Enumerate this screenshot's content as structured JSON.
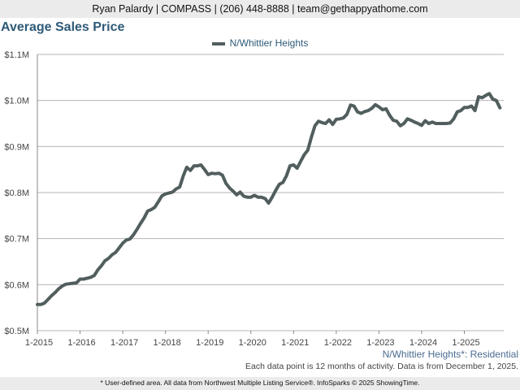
{
  "header": {
    "contact": "Ryan Palardy | COMPASS | (206) 448-8888 | team@gethappyathome.com"
  },
  "chart_data": {
    "type": "line",
    "title": "Average Sales Price",
    "area_label": "N/Whittier Heights*: Residential",
    "note": "Each data point is 12 months of activity. Data is from December 1, 2025.",
    "footer": "* User-defined area. All data from Northwest Multiple Listing Service®. InfoSparks © 2025 ShowingTime.",
    "legend_position": "top",
    "grid": true,
    "line_color": "#525e5e",
    "ylim": [
      0.5,
      1.1
    ],
    "y_ticks": [
      {
        "value": 0.5,
        "label": "$0.5M"
      },
      {
        "value": 0.6,
        "label": "$0.6M"
      },
      {
        "value": 0.7,
        "label": "$0.7M"
      },
      {
        "value": 0.8,
        "label": "$0.8M"
      },
      {
        "value": 0.9,
        "label": "$0.9M"
      },
      {
        "value": 1.0,
        "label": "$1.0M"
      },
      {
        "value": 1.1,
        "label": "$1.1M"
      }
    ],
    "x_ticks": [
      "1-2015",
      "1-2016",
      "1-2017",
      "1-2018",
      "1-2019",
      "1-2020",
      "1-2021",
      "1-2022",
      "1-2023",
      "1-2024",
      "1-2025"
    ],
    "series": [
      {
        "name": "N/Whittier Heights",
        "x": [
          "2015-01",
          "2015-02",
          "2015-03",
          "2015-04",
          "2015-05",
          "2015-06",
          "2015-07",
          "2015-08",
          "2015-09",
          "2015-10",
          "2015-11",
          "2015-12",
          "2016-01",
          "2016-02",
          "2016-03",
          "2016-04",
          "2016-05",
          "2016-06",
          "2016-07",
          "2016-08",
          "2016-09",
          "2016-10",
          "2016-11",
          "2016-12",
          "2017-01",
          "2017-02",
          "2017-03",
          "2017-04",
          "2017-05",
          "2017-06",
          "2017-07",
          "2017-08",
          "2017-09",
          "2017-10",
          "2017-11",
          "2017-12",
          "2018-01",
          "2018-02",
          "2018-03",
          "2018-04",
          "2018-05",
          "2018-06",
          "2018-07",
          "2018-08",
          "2018-09",
          "2018-10",
          "2018-11",
          "2018-12",
          "2019-01",
          "2019-02",
          "2019-03",
          "2019-04",
          "2019-05",
          "2019-06",
          "2019-07",
          "2019-08",
          "2019-09",
          "2019-10",
          "2019-11",
          "2019-12",
          "2020-01",
          "2020-02",
          "2020-03",
          "2020-04",
          "2020-05",
          "2020-06",
          "2020-07",
          "2020-08",
          "2020-09",
          "2020-10",
          "2020-11",
          "2020-12",
          "2021-01",
          "2021-02",
          "2021-03",
          "2021-04",
          "2021-05",
          "2021-06",
          "2021-07",
          "2021-08",
          "2021-09",
          "2021-10",
          "2021-11",
          "2021-12",
          "2022-01",
          "2022-02",
          "2022-03",
          "2022-04",
          "2022-05",
          "2022-06",
          "2022-07",
          "2022-08",
          "2022-09",
          "2022-10",
          "2022-11",
          "2022-12",
          "2023-01",
          "2023-02",
          "2023-03",
          "2023-04",
          "2023-05",
          "2023-06",
          "2023-07",
          "2023-08",
          "2023-09",
          "2023-10",
          "2023-11",
          "2023-12",
          "2024-01",
          "2024-02",
          "2024-03",
          "2024-04",
          "2024-05",
          "2024-06",
          "2024-07",
          "2024-08",
          "2024-09",
          "2024-10",
          "2024-11",
          "2024-12",
          "2025-01",
          "2025-02",
          "2025-03",
          "2025-04",
          "2025-05",
          "2025-06",
          "2025-07",
          "2025-08",
          "2025-09",
          "2025-10",
          "2025-11"
        ],
        "values": [
          0.557,
          0.557,
          0.56,
          0.568,
          0.576,
          0.583,
          0.591,
          0.597,
          0.601,
          0.602,
          0.603,
          0.604,
          0.612,
          0.612,
          0.614,
          0.616,
          0.62,
          0.632,
          0.641,
          0.652,
          0.657,
          0.665,
          0.67,
          0.68,
          0.69,
          0.697,
          0.699,
          0.708,
          0.72,
          0.733,
          0.745,
          0.76,
          0.763,
          0.768,
          0.78,
          0.793,
          0.797,
          0.799,
          0.801,
          0.808,
          0.812,
          0.836,
          0.855,
          0.848,
          0.858,
          0.858,
          0.86,
          0.85,
          0.839,
          0.842,
          0.841,
          0.842,
          0.838,
          0.82,
          0.81,
          0.803,
          0.795,
          0.801,
          0.792,
          0.79,
          0.79,
          0.794,
          0.79,
          0.79,
          0.787,
          0.777,
          0.79,
          0.805,
          0.818,
          0.822,
          0.836,
          0.858,
          0.86,
          0.853,
          0.868,
          0.882,
          0.892,
          0.92,
          0.945,
          0.955,
          0.952,
          0.95,
          0.958,
          0.948,
          0.959,
          0.96,
          0.962,
          0.97,
          0.99,
          0.988,
          0.975,
          0.972,
          0.976,
          0.978,
          0.983,
          0.991,
          0.986,
          0.98,
          0.982,
          0.968,
          0.957,
          0.955,
          0.945,
          0.95,
          0.96,
          0.957,
          0.953,
          0.95,
          0.946,
          0.956,
          0.95,
          0.953,
          0.95,
          0.95,
          0.95,
          0.95,
          0.951,
          0.96,
          0.975,
          0.978,
          0.985,
          0.985,
          0.988,
          0.978,
          1.008,
          1.006,
          1.011,
          1.015,
          1.003,
          1.0,
          0.984
        ]
      }
    ]
  }
}
